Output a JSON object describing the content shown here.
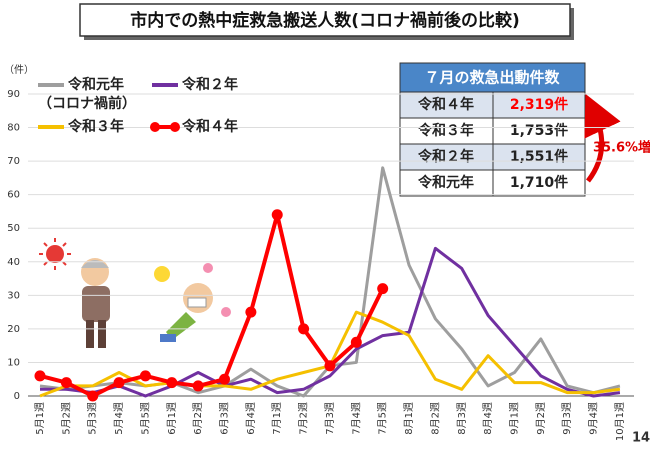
{
  "chart_data": {
    "type": "line",
    "title": "市内での熱中症救急搬送人数(コロナ禍前後の比較)",
    "y_label": "（件）",
    "page_number": "14",
    "legend_note": "（コロナ禍前）",
    "categories": [
      "5月1週",
      "5月2週",
      "5月3週",
      "5月4週",
      "5月5週",
      "6月1週",
      "6月2週",
      "6月3週",
      "6月4週",
      "7月1週",
      "7月2週",
      "7月3週",
      "7月4週",
      "7月5週",
      "8月1週",
      "8月2週",
      "8月3週",
      "8月4週",
      "9月1週",
      "9月2週",
      "9月3週",
      "9月4週",
      "10月1週"
    ],
    "ylim": [
      0,
      90
    ],
    "yticks": [
      0,
      10,
      20,
      30,
      40,
      50,
      60,
      70,
      80,
      90
    ],
    "series": [
      {
        "name": "令和元年",
        "color": "#9e9e9e",
        "values": [
          3,
          2,
          3,
          4,
          3,
          4,
          1,
          3,
          8,
          3,
          0,
          9,
          10,
          68,
          39,
          23,
          14,
          3,
          7,
          17,
          3,
          1,
          3
        ]
      },
      {
        "name": "令和２年",
        "color": "#7030a0",
        "values": [
          2,
          2,
          1,
          3,
          0,
          3,
          7,
          3,
          5,
          1,
          2,
          6,
          14,
          18,
          19,
          44,
          38,
          24,
          15,
          6,
          2,
          0,
          1
        ]
      },
      {
        "name": "令和３年",
        "color": "#f5c000",
        "values": [
          0,
          3,
          3,
          7,
          3,
          4,
          3,
          3,
          2,
          5,
          7,
          9,
          25,
          22,
          18,
          5,
          2,
          12,
          4,
          4,
          1,
          1,
          2
        ]
      },
      {
        "name": "令和４年",
        "color": "#ff0000",
        "markers": true,
        "values": [
          6,
          4,
          0,
          4,
          6,
          4,
          3,
          5,
          25,
          54,
          20,
          9,
          16,
          32,
          null,
          null,
          null,
          null,
          null,
          null,
          null,
          null,
          null
        ]
      }
    ],
    "table": {
      "title": "７月の救急出動件数",
      "rows": [
        [
          "令和４年",
          "2,319件"
        ],
        [
          "令和３年",
          "1,753件"
        ],
        [
          "令和２年",
          "1,551件"
        ],
        [
          "令和元年",
          "1,710件"
        ]
      ],
      "annotation": "35.6%増"
    }
  }
}
